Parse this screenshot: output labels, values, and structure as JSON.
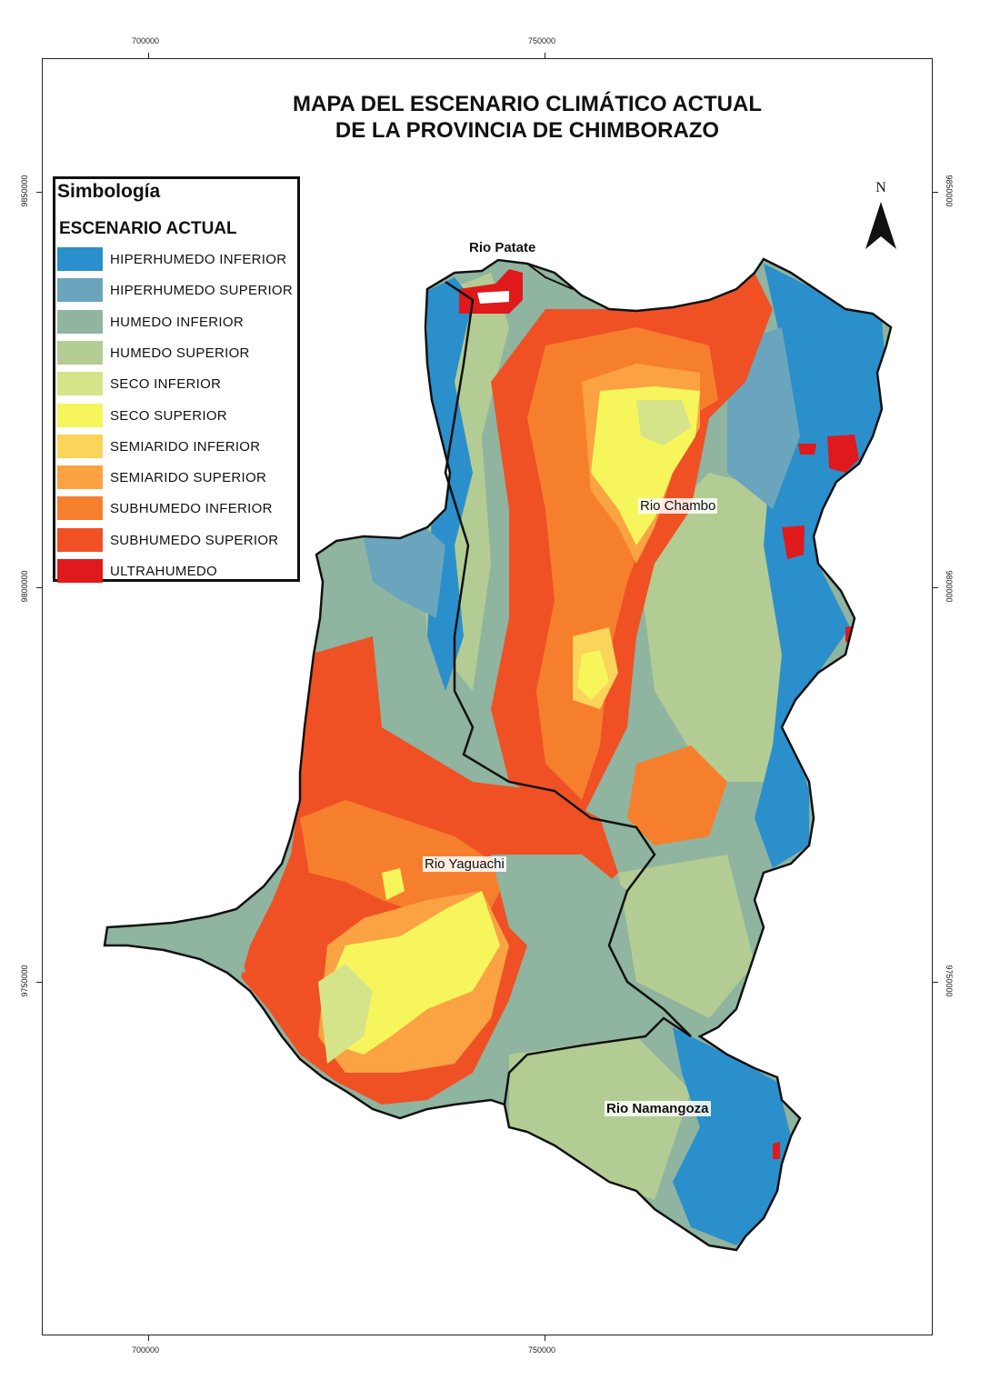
{
  "map": {
    "title_line1": "MAPA DEL ESCENARIO CLIMÁTICO ACTUAL",
    "title_line2": "DE LA PROVINCIA DE CHIMBORAZO",
    "north_label": "N",
    "coords": {
      "top_x1": "700000",
      "top_x2": "750000",
      "bottom_x1": "700000",
      "bottom_x2": "750000",
      "left_y1": "9850000",
      "left_y2": "9800000",
      "left_y3": "9750000",
      "right_y1": "9850000",
      "right_y2": "9800000",
      "right_y3": "9750000"
    },
    "rivers": {
      "patate": "Rio Patate",
      "chambo": "Rio Chambo",
      "yaguachi": "Rio Yaguachi",
      "namangoza": "Rio Namangoza"
    }
  },
  "legend": {
    "title": "Simbología",
    "subtitle": "ESCENARIO ACTUAL",
    "items": [
      {
        "label": "HIPERHUMEDO INFERIOR",
        "color": "#2b8fcb"
      },
      {
        "label": "HIPERHUMEDO SUPERIOR",
        "color": "#6aa5bd"
      },
      {
        "label": "HUMEDO INFERIOR",
        "color": "#8fb4a0"
      },
      {
        "label": "HUMEDO SUPERIOR",
        "color": "#b3cc93"
      },
      {
        "label": "SECO INFERIOR",
        "color": "#d6e489"
      },
      {
        "label": "SECO SUPERIOR",
        "color": "#f6f65c"
      },
      {
        "label": "SEMIARIDO INFERIOR",
        "color": "#fbd45a"
      },
      {
        "label": "SEMIARIDO SUPERIOR",
        "color": "#fba342"
      },
      {
        "label": "SUBHUMEDO INFERIOR",
        "color": "#f67f2e"
      },
      {
        "label": "SUBHUMEDO SUPERIOR",
        "color": "#ef5125"
      },
      {
        "label": "ULTRAHUMEDO",
        "color": "#e0191d"
      }
    ]
  }
}
